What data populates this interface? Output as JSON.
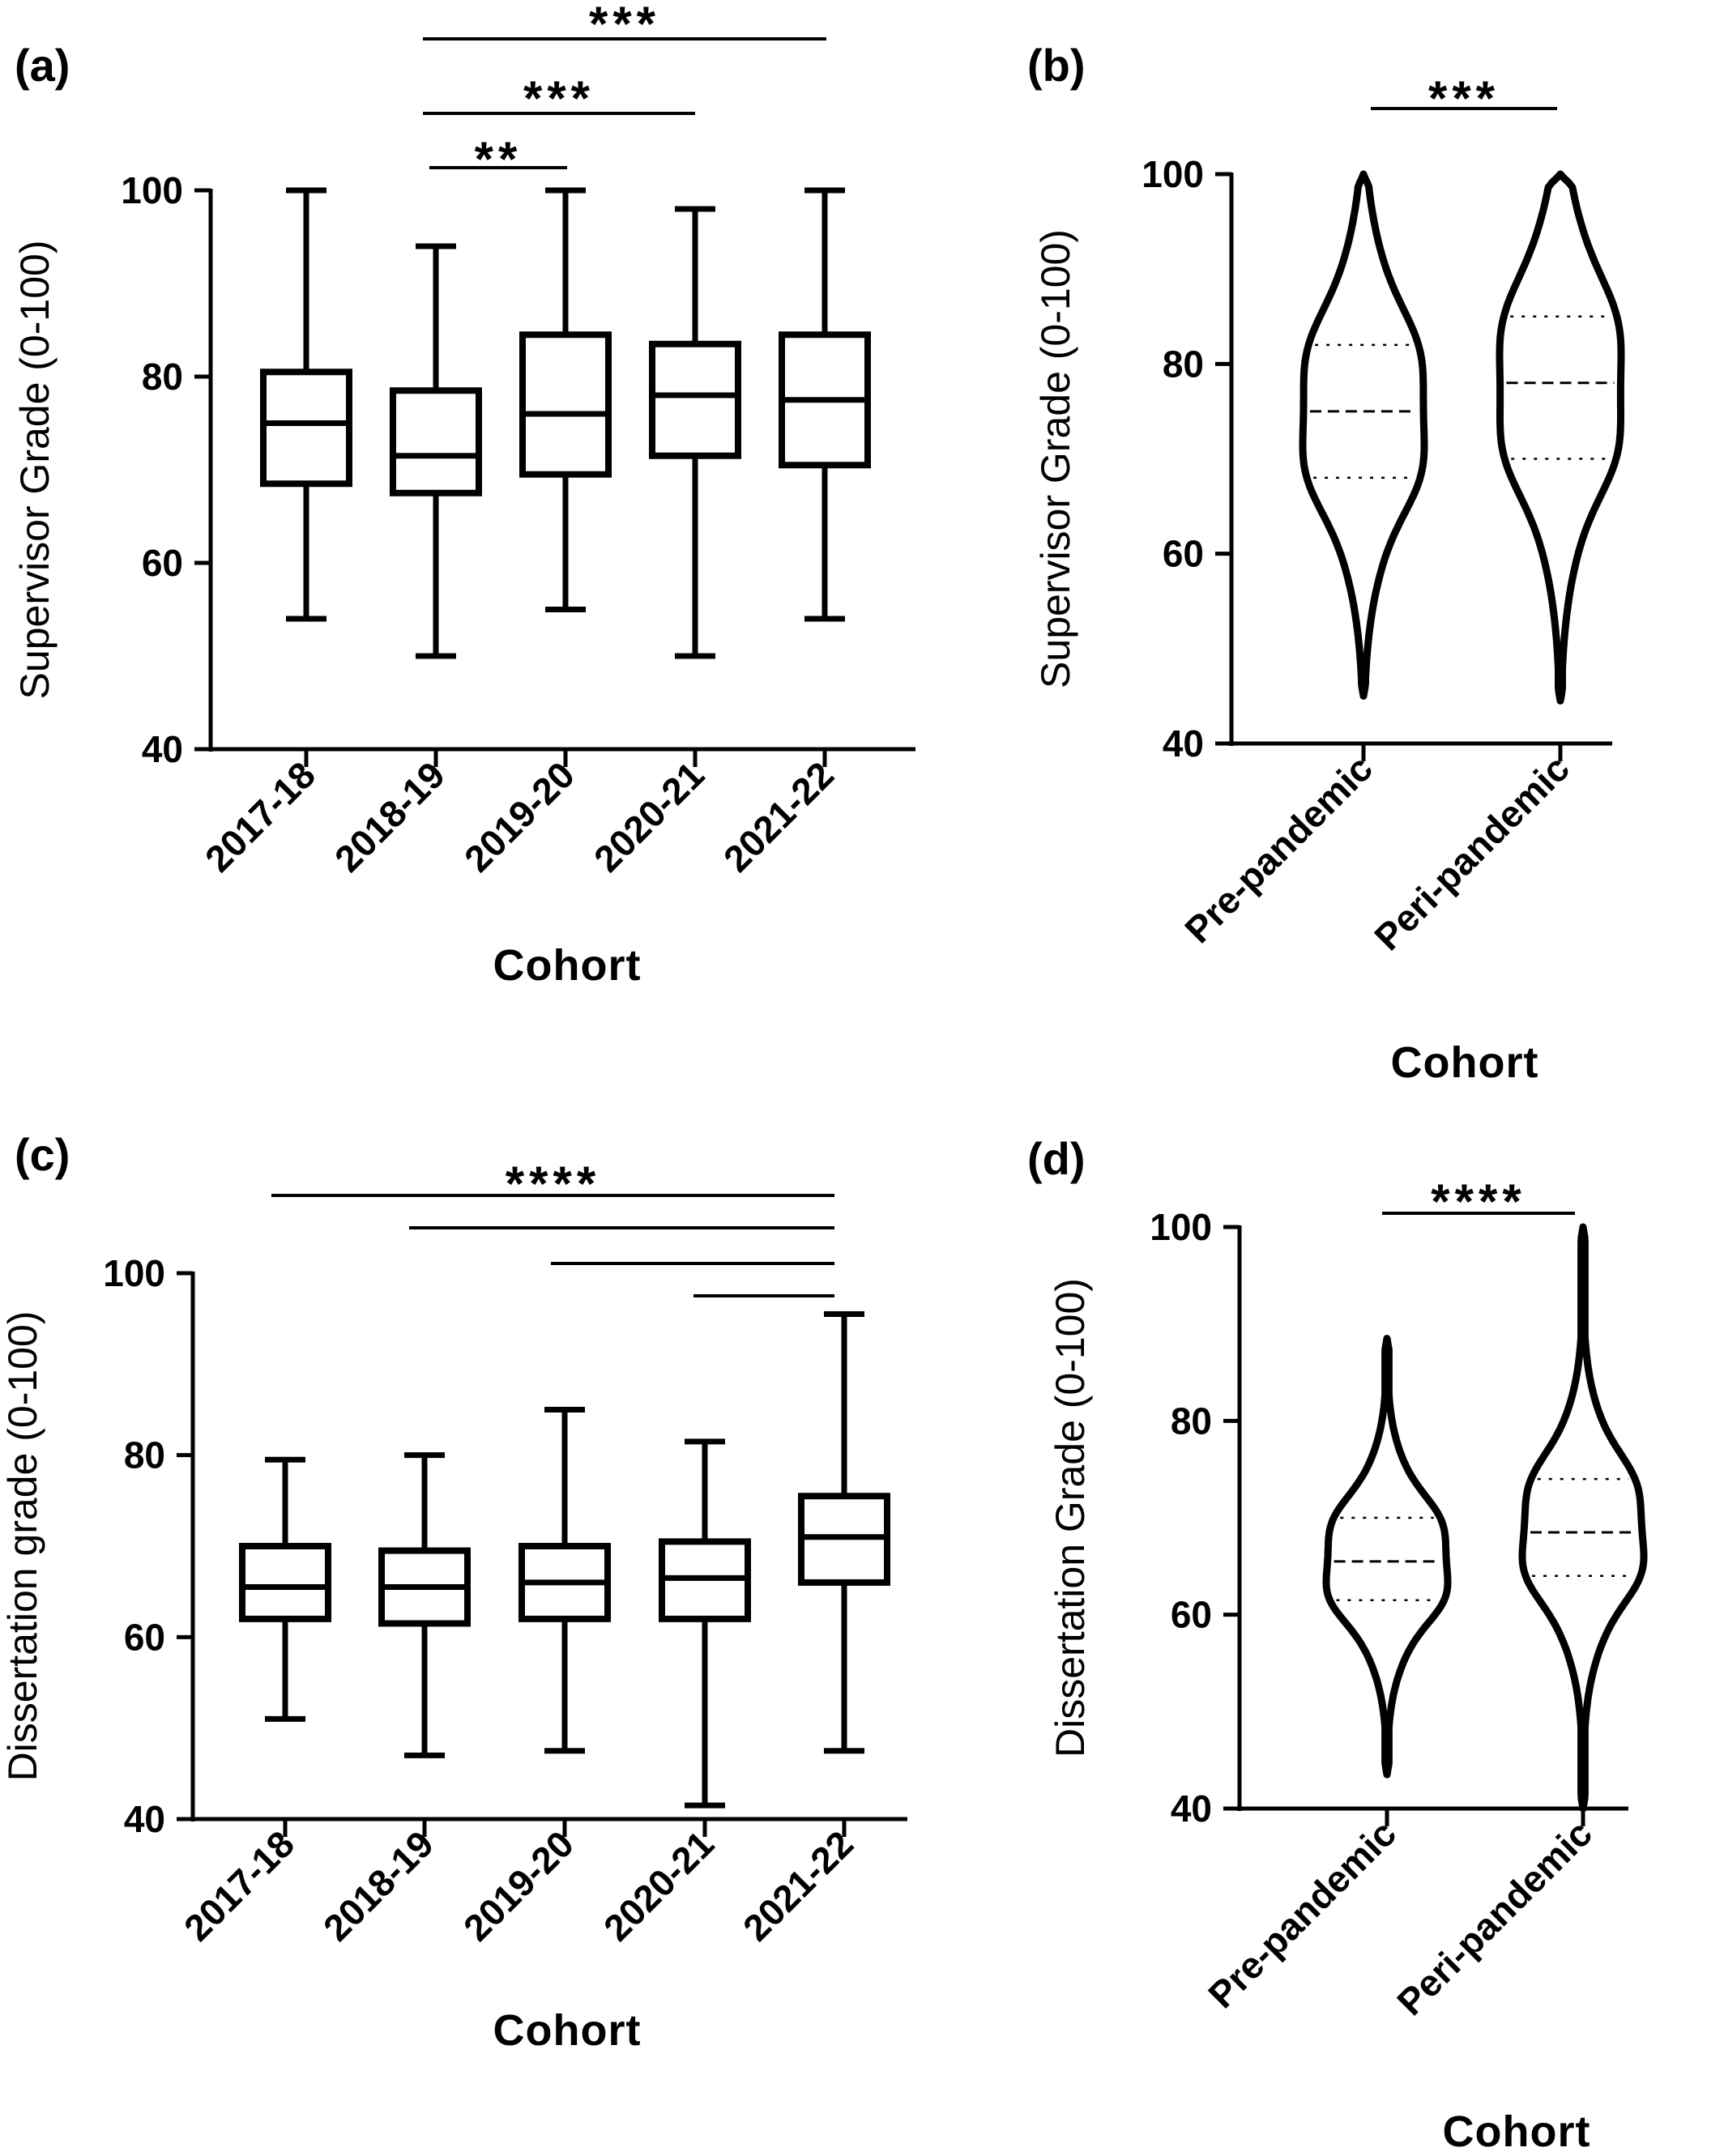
{
  "chart_data": [
    {
      "panel_label": "(a)",
      "type": "box",
      "xlabel": "Cohort",
      "ylabel": "Supervisor Grade (0-100)",
      "ylim": [
        40,
        100
      ],
      "yticks": [
        40,
        60,
        80,
        100
      ],
      "categories": [
        "2017-18",
        "2018-19",
        "2019-20",
        "2020-21",
        "2021-22"
      ],
      "boxes": [
        {
          "min": 54,
          "q1": 68.5,
          "median": 75,
          "q3": 80.5,
          "max": 100
        },
        {
          "min": 50,
          "q1": 67.5,
          "median": 71.5,
          "q3": 78.5,
          "max": 94
        },
        {
          "min": 55,
          "q1": 69.5,
          "median": 76,
          "q3": 84.5,
          "max": 100
        },
        {
          "min": 50,
          "q1": 71.5,
          "median": 78,
          "q3": 83.5,
          "max": 98
        },
        {
          "min": 54,
          "q1": 70.5,
          "median": 77.5,
          "q3": 84.5,
          "max": 100
        }
      ],
      "significance": [
        {
          "from": "2018-19",
          "to": "2021-22",
          "label": "***"
        },
        {
          "from": "2018-19",
          "to": "2020-21",
          "label": "***"
        },
        {
          "from": "2018-19",
          "to": "2019-20",
          "label": "**"
        }
      ]
    },
    {
      "panel_label": "(b)",
      "type": "violin",
      "xlabel": "Cohort",
      "ylabel": "Supervisor Grade (0-100)",
      "ylim": [
        40,
        100
      ],
      "yticks": [
        40,
        60,
        80,
        100
      ],
      "categories": [
        "Pre-pandemic",
        "Peri-pandemic"
      ],
      "violins": [
        {
          "min": 45,
          "q1": 68,
          "median": 75,
          "q3": 82,
          "max": 100
        },
        {
          "min": 44.5,
          "q1": 70,
          "median": 78,
          "q3": 85,
          "max": 100
        }
      ],
      "significance": [
        {
          "from": "Pre-pandemic",
          "to": "Peri-pandemic",
          "label": "***"
        }
      ]
    },
    {
      "panel_label": "(c)",
      "type": "box",
      "xlabel": "Cohort",
      "ylabel": "Dissertation grade (0-100)",
      "ylim": [
        40,
        100
      ],
      "yticks": [
        40,
        60,
        80,
        100
      ],
      "categories": [
        "2017-18",
        "2018-19",
        "2019-20",
        "2020-21",
        "2021-22"
      ],
      "boxes": [
        {
          "min": 51,
          "q1": 62,
          "median": 65.5,
          "q3": 70,
          "max": 79.5
        },
        {
          "min": 47,
          "q1": 61.5,
          "median": 65.5,
          "q3": 69.5,
          "max": 80
        },
        {
          "min": 47.5,
          "q1": 62,
          "median": 66,
          "q3": 70,
          "max": 85
        },
        {
          "min": 41.5,
          "q1": 62,
          "median": 66.5,
          "q3": 70.5,
          "max": 81.5
        },
        {
          "min": 47.5,
          "q1": 66,
          "median": 71,
          "q3": 75.5,
          "max": 95.5
        }
      ],
      "significance": [
        {
          "from": "2017-18",
          "to": "2021-22",
          "label": "****"
        },
        {
          "from": "2018-19",
          "to": "2021-22",
          "label": ""
        },
        {
          "from": "2019-20",
          "to": "2021-22",
          "label": ""
        },
        {
          "from": "2020-21",
          "to": "2021-22",
          "label": ""
        }
      ]
    },
    {
      "panel_label": "(d)",
      "type": "violin",
      "xlabel": "Cohort",
      "ylabel": "Dissertation Grade (0-100)",
      "ylim": [
        40,
        100
      ],
      "yticks": [
        40,
        60,
        80,
        100
      ],
      "categories": [
        "Pre-pandemic",
        "Peri-pandemic"
      ],
      "violins": [
        {
          "min": 43.5,
          "q1": 61.5,
          "median": 65.5,
          "q3": 70,
          "max": 88.5
        },
        {
          "min": 40,
          "q1": 64,
          "median": 68.5,
          "q3": 74,
          "max": 100
        }
      ],
      "significance": [
        {
          "from": "Pre-pandemic",
          "to": "Peri-pandemic",
          "label": "****"
        }
      ]
    }
  ]
}
